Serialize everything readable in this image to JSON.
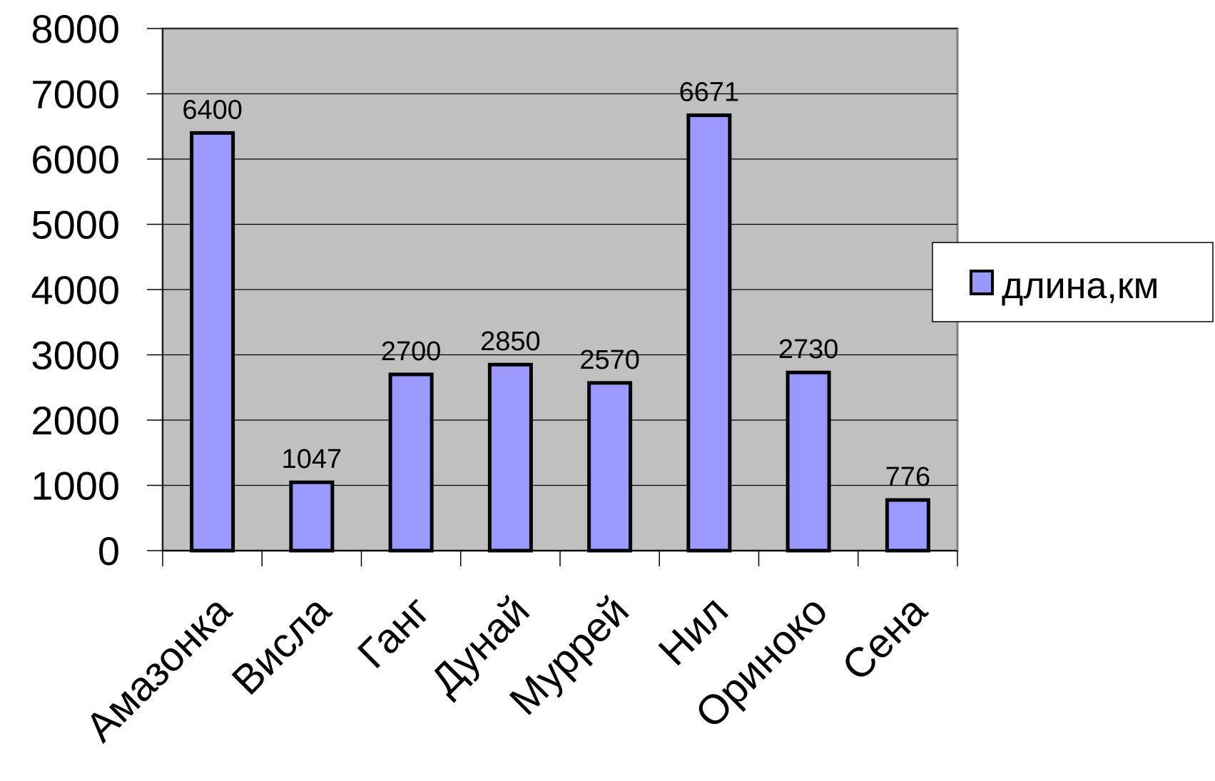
{
  "chart_data": {
    "type": "bar",
    "categories": [
      "Амазонка",
      "Висла",
      "Ганг",
      "Дунай",
      "Муррей",
      "Нил",
      "Ориноко",
      "Сена"
    ],
    "series": [
      {
        "name": "длина,км",
        "values": [
          6400,
          1047,
          2700,
          2850,
          2570,
          6671,
          2730,
          776
        ]
      }
    ],
    "data_labels": [
      "6400",
      "1047",
      "2700",
      "2850",
      "2570",
      "6671",
      "2730",
      "776"
    ],
    "y_ticks": [
      "0",
      "1000",
      "2000",
      "3000",
      "4000",
      "5000",
      "6000",
      "7000",
      "8000"
    ],
    "ylim": [
      0,
      8000
    ],
    "grid": true,
    "legend_position": "right",
    "colors": {
      "bar_fill": "#9999ff",
      "bar_stroke": "#000000",
      "plot_background": "#c0c0c0",
      "gridline": "#000000"
    }
  }
}
